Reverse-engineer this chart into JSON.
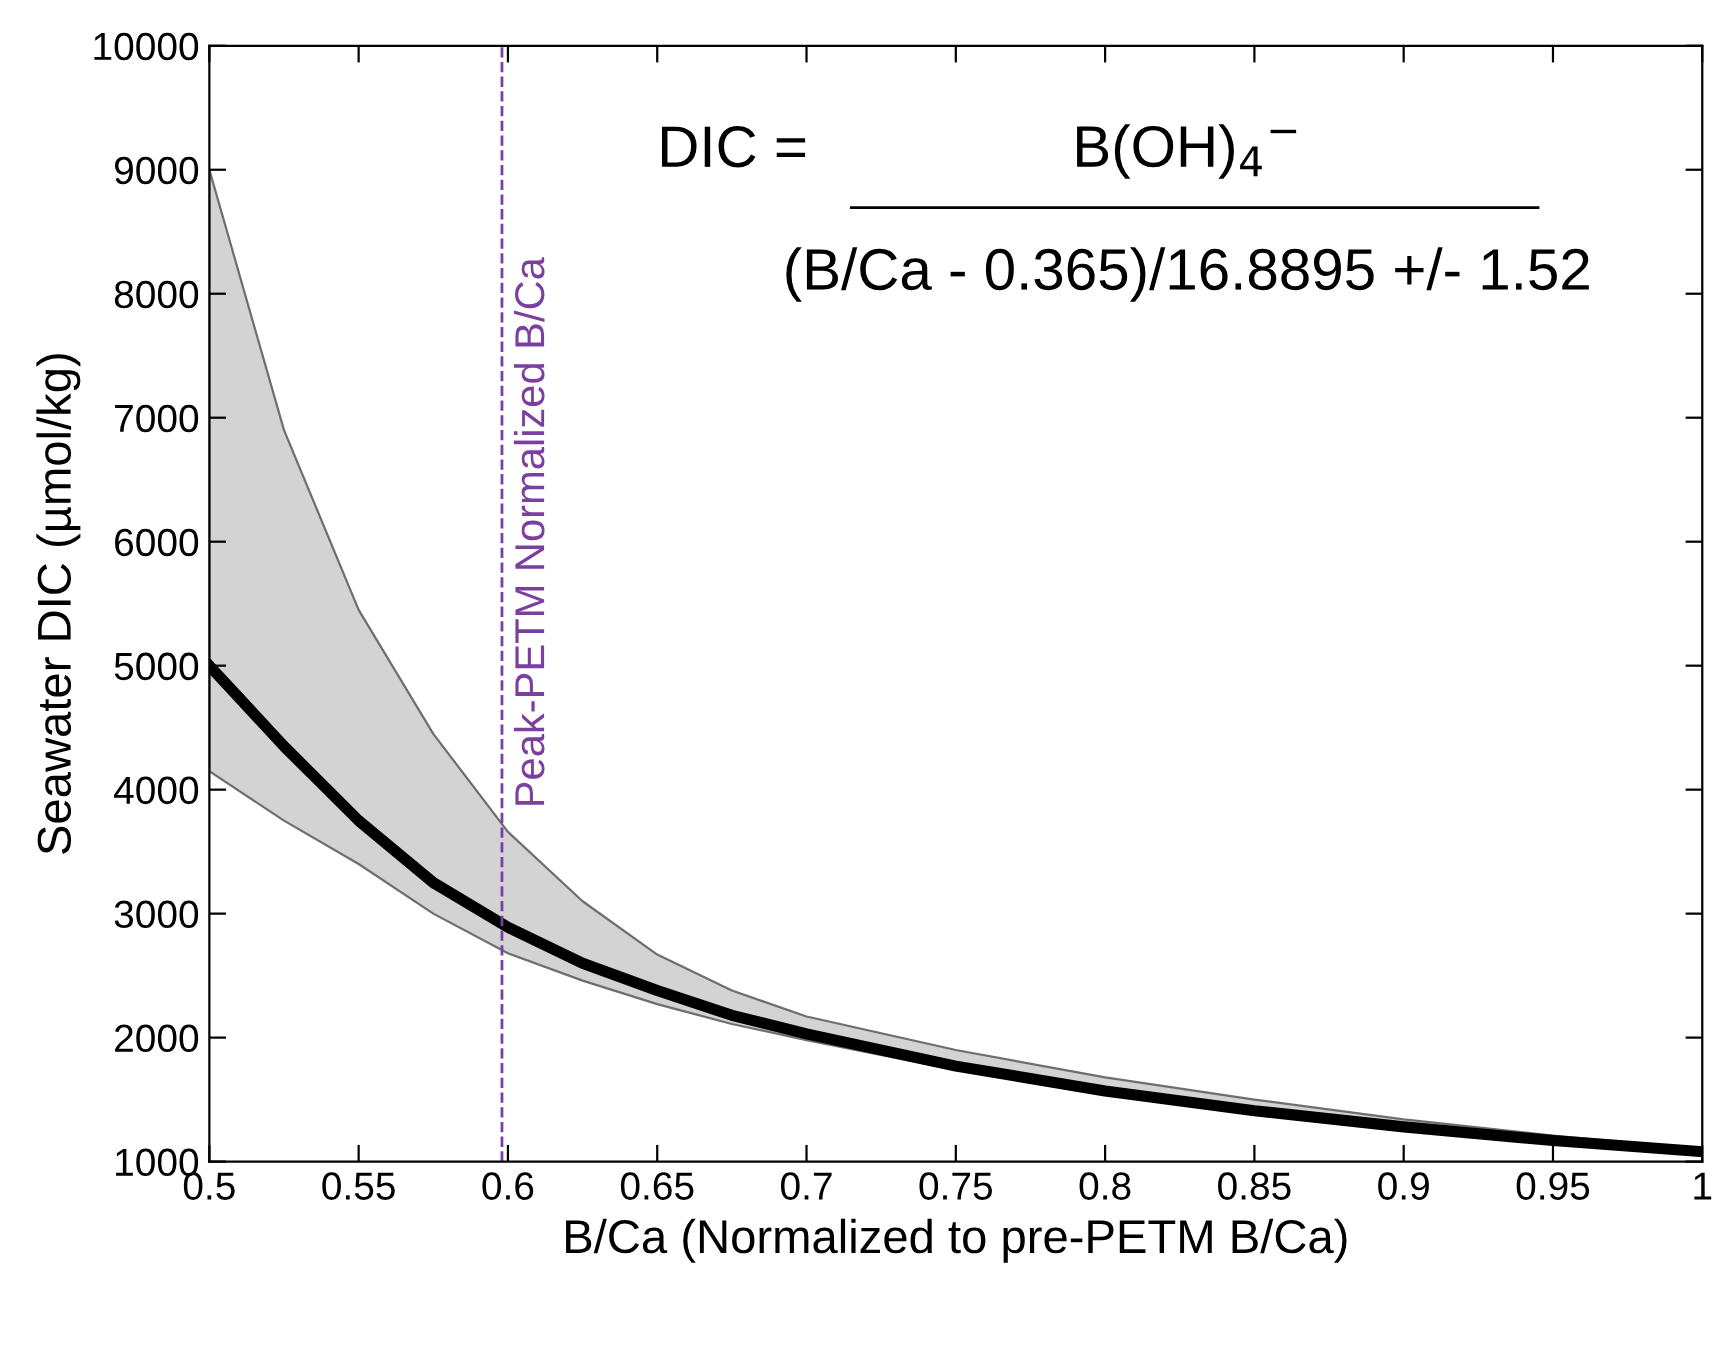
{
  "chart_data": {
    "type": "line",
    "xlabel": "B/Ca (Normalized to pre-PETM B/Ca)",
    "ylabel": "Seawater DIC (µmol/kg)",
    "x": [
      0.5,
      0.525,
      0.55,
      0.575,
      0.6,
      0.625,
      0.65,
      0.675,
      0.7,
      0.75,
      0.8,
      0.85,
      0.9,
      0.95,
      1.0
    ],
    "series": [
      {
        "color": "#000000",
        "values": [
          5000,
          4350,
          3750,
          3250,
          2890,
          2600,
          2380,
          2180,
          2030,
          1770,
          1570,
          1410,
          1280,
          1170,
          1080
        ],
        "lower": [
          4150,
          3750,
          3400,
          3000,
          2680,
          2460,
          2270,
          2110,
          1980,
          1740,
          1550,
          1400,
          1270,
          1165,
          1070
        ],
        "upper": [
          9000,
          6900,
          5450,
          4450,
          3660,
          3100,
          2670,
          2380,
          2170,
          1900,
          1680,
          1500,
          1340,
          1210,
          1100
        ]
      }
    ],
    "xlim": [
      0.5,
      1
    ],
    "ylim": [
      1000,
      10000
    ],
    "xticks": [
      0.5,
      0.55,
      0.6,
      0.65,
      0.7,
      0.75,
      0.8,
      0.85,
      0.9,
      0.95,
      1
    ],
    "yticks": [
      1000,
      2000,
      3000,
      4000,
      5000,
      6000,
      7000,
      8000,
      9000,
      10000
    ],
    "grid": false,
    "legend": false,
    "line_style": "solid",
    "marker": "none",
    "ref_lines": [
      {
        "axis": "x",
        "value": 0.598,
        "label": "Peak-PETM Normalized B/Ca",
        "color": "#7b3fa0",
        "line_style": "dashed"
      }
    ],
    "annotations": [
      "DIC =",
      "B(OH)$_{4}$$^{−}$",
      "(B/Ca - 0.365)/16.8895 +/- 1.52"
    ]
  }
}
